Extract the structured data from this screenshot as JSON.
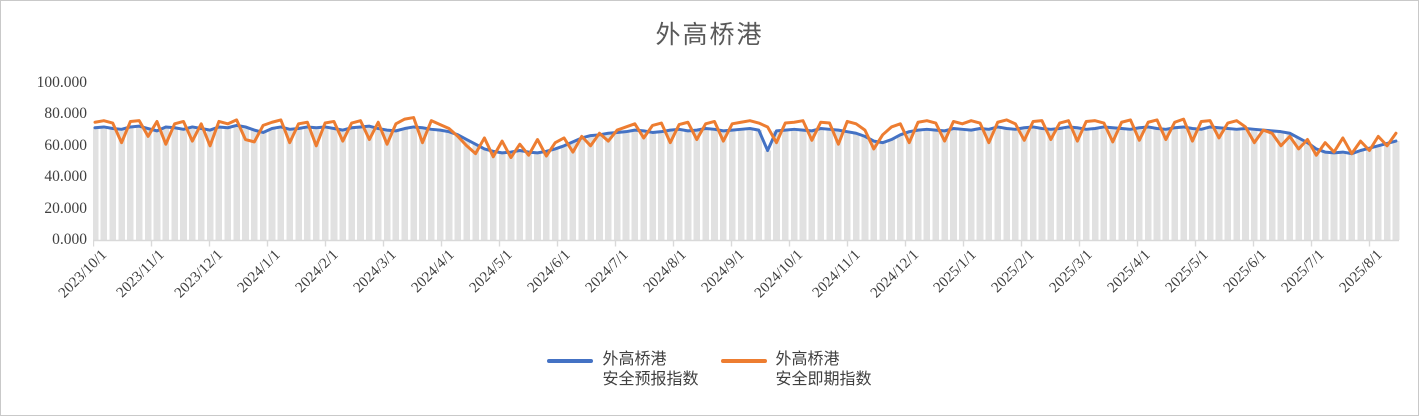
{
  "title": "外高桥港",
  "colors": {
    "series_forecast": "#4472C4",
    "series_spot": "#ED7D31",
    "background_bars": "#E1E1E1",
    "axis_line": "#D9D9D9",
    "title_text": "#595959",
    "tick_text": "#3f3f3f",
    "legend_text": "#404040"
  },
  "legend": {
    "items": [
      {
        "line1": "外高桥港",
        "line2": "安全预报指数",
        "color": "#4472C4"
      },
      {
        "line1": "外高桥港",
        "line2": "安全即期指数",
        "color": "#ED7D31"
      }
    ]
  },
  "chart_data": {
    "type": "line",
    "title": "外高桥港",
    "xlabel": "",
    "ylabel": "",
    "ylim": [
      0,
      100
    ],
    "y_tick_labels": [
      "0.000",
      "20.000",
      "40.000",
      "60.000",
      "80.000",
      "100.000"
    ],
    "y_tick_values": [
      0,
      20,
      40,
      60,
      80,
      100
    ],
    "x_tick_labels": [
      "2023/10/1",
      "2023/11/1",
      "2023/12/1",
      "2024/1/1",
      "2024/2/1",
      "2024/3/1",
      "2024/4/1",
      "2024/5/1",
      "2024/6/1",
      "2024/7/1",
      "2024/8/1",
      "2024/9/1",
      "2024/10/1",
      "2024/11/1",
      "2024/12/1",
      "2025/1/1",
      "2025/2/1",
      "2025/3/1",
      "2025/4/1",
      "2025/5/1",
      "2025/6/1",
      "2025/7/1",
      "2025/8/1"
    ],
    "layout": {
      "legend_position": "bottom",
      "grid": false,
      "x_label_rotation": -45,
      "background_bars": "light-gray drop bars behind lines, height follows forecast series",
      "points_evenly_spaced_from": "2023/10/1",
      "points_evenly_spaced_to": "2025/8/13"
    },
    "series": [
      {
        "name": "外高桥港安全预报指数",
        "color": "#4472C4",
        "values": [
          71.5,
          72,
          71,
          70.5,
          72,
          72.5,
          71,
          69.5,
          72,
          71.5,
          70.5,
          72,
          71,
          70,
          72,
          71.5,
          73,
          72,
          70,
          68.5,
          71,
          72,
          70.5,
          71,
          72,
          71.5,
          72,
          71,
          70,
          71.5,
          72,
          72.5,
          71,
          70,
          69.5,
          71,
          72,
          71.5,
          70.5,
          70,
          69,
          67,
          64,
          61,
          58,
          56.5,
          55.5,
          56,
          57,
          56,
          55.5,
          56.5,
          58,
          60,
          62.5,
          65,
          66.5,
          67,
          68,
          68.5,
          69,
          70,
          69.5,
          68.5,
          69,
          70,
          70.5,
          69.5,
          70,
          71,
          70.5,
          69.5,
          70,
          70.5,
          71,
          70,
          57,
          69.5,
          70,
          70.5,
          70,
          69.5,
          71,
          70.5,
          70,
          69,
          68,
          66,
          63,
          62,
          64,
          67,
          69,
          70,
          70.5,
          70,
          69.5,
          71,
          70.5,
          70,
          71,
          70.5,
          72,
          71,
          70.5,
          71.5,
          72,
          71,
          70.5,
          71,
          72,
          71.5,
          70.5,
          71,
          72,
          71.5,
          71,
          70.5,
          71.5,
          72,
          71,
          70.5,
          71.5,
          72,
          71,
          70.5,
          72,
          71.5,
          71,
          70.5,
          71,
          70.5,
          70,
          69.5,
          69,
          68,
          65,
          62,
          58,
          56,
          55.5,
          56,
          55,
          57,
          58.5,
          60,
          61.5,
          63
        ]
      },
      {
        "name": "外高桥港安全即期指数",
        "color": "#ED7D31",
        "values": [
          75,
          76,
          74.5,
          62,
          75.5,
          76,
          66,
          75.5,
          61,
          74,
          75.5,
          63,
          74,
          60,
          75.5,
          74,
          76.5,
          64,
          62.5,
          73,
          75,
          76.5,
          62,
          74,
          75,
          60,
          74.5,
          75.5,
          63,
          74.5,
          76,
          64,
          75,
          61,
          74,
          77,
          78,
          62,
          76,
          73.5,
          71,
          66,
          60,
          55,
          65,
          53,
          63,
          52.5,
          61,
          54,
          64,
          53.5,
          62,
          65,
          56,
          66,
          60,
          68,
          63,
          70,
          72,
          74,
          65,
          73,
          74.5,
          62,
          73.5,
          75,
          64,
          74,
          75.5,
          63,
          74,
          75,
          76,
          74.5,
          72,
          62,
          74.5,
          75,
          76,
          63.5,
          75,
          74.5,
          61,
          75.5,
          74,
          70,
          58,
          67,
          72,
          74,
          62,
          75,
          76,
          74.5,
          63,
          75.5,
          74,
          76,
          74.5,
          62,
          75,
          76.5,
          74,
          63.5,
          75.5,
          76,
          64,
          74.5,
          76,
          63,
          75.5,
          76,
          74.5,
          62.5,
          75,
          76.5,
          63.5,
          75,
          76.5,
          64,
          75,
          77,
          63,
          75.5,
          76,
          65,
          74.5,
          76,
          72,
          62,
          70,
          68,
          60,
          66,
          58,
          64,
          54,
          62,
          56,
          65,
          55,
          63,
          57,
          66,
          60,
          68
        ]
      }
    ]
  }
}
